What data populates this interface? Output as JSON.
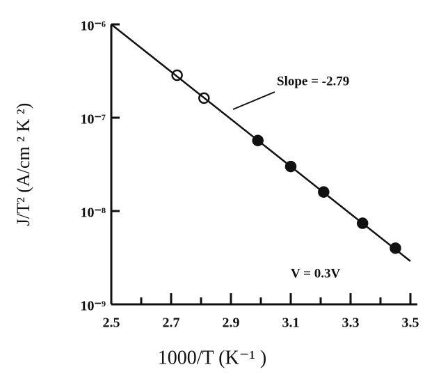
{
  "chart_data": {
    "type": "scatter",
    "x_label": "1000/T (K⁻¹ )",
    "y_label": "J/T² (A/cm ² K ²)",
    "annotations": [
      "Slope = -2.79",
      "V = 0.3V"
    ],
    "xlim": [
      2.5,
      3.5
    ],
    "xticks": [
      2.5,
      2.7,
      2.9,
      3.1,
      3.3,
      3.5
    ],
    "xminor_ticks": [
      2.6,
      2.8,
      3.0,
      3.2,
      3.4
    ],
    "ylim": [
      1e-09,
      1e-06
    ],
    "log_y": true,
    "yticks": [
      {
        "value": 1e-06,
        "label": "10⁻⁶"
      },
      {
        "value": 1e-07,
        "label": "10⁻⁷"
      },
      {
        "value": 1e-08,
        "label": "10⁻⁸"
      },
      {
        "value": 1e-09,
        "label": "10⁻⁹"
      }
    ],
    "color": "#111111",
    "series": [
      {
        "marker": "open",
        "x": [
          2.72,
          2.81
        ],
        "values": [
          2.85e-07,
          1.62e-07
        ]
      },
      {
        "marker": "filled",
        "x": [
          2.99,
          3.1,
          3.21,
          3.34,
          3.45
        ],
        "values": [
          5.7e-08,
          3e-08,
          1.6e-08,
          7.4e-09,
          4e-09
        ]
      },
      {
        "marker": "line",
        "x": [
          2.5,
          3.5
        ],
        "values": [
          1e-06,
          2.9e-09
        ]
      }
    ]
  }
}
